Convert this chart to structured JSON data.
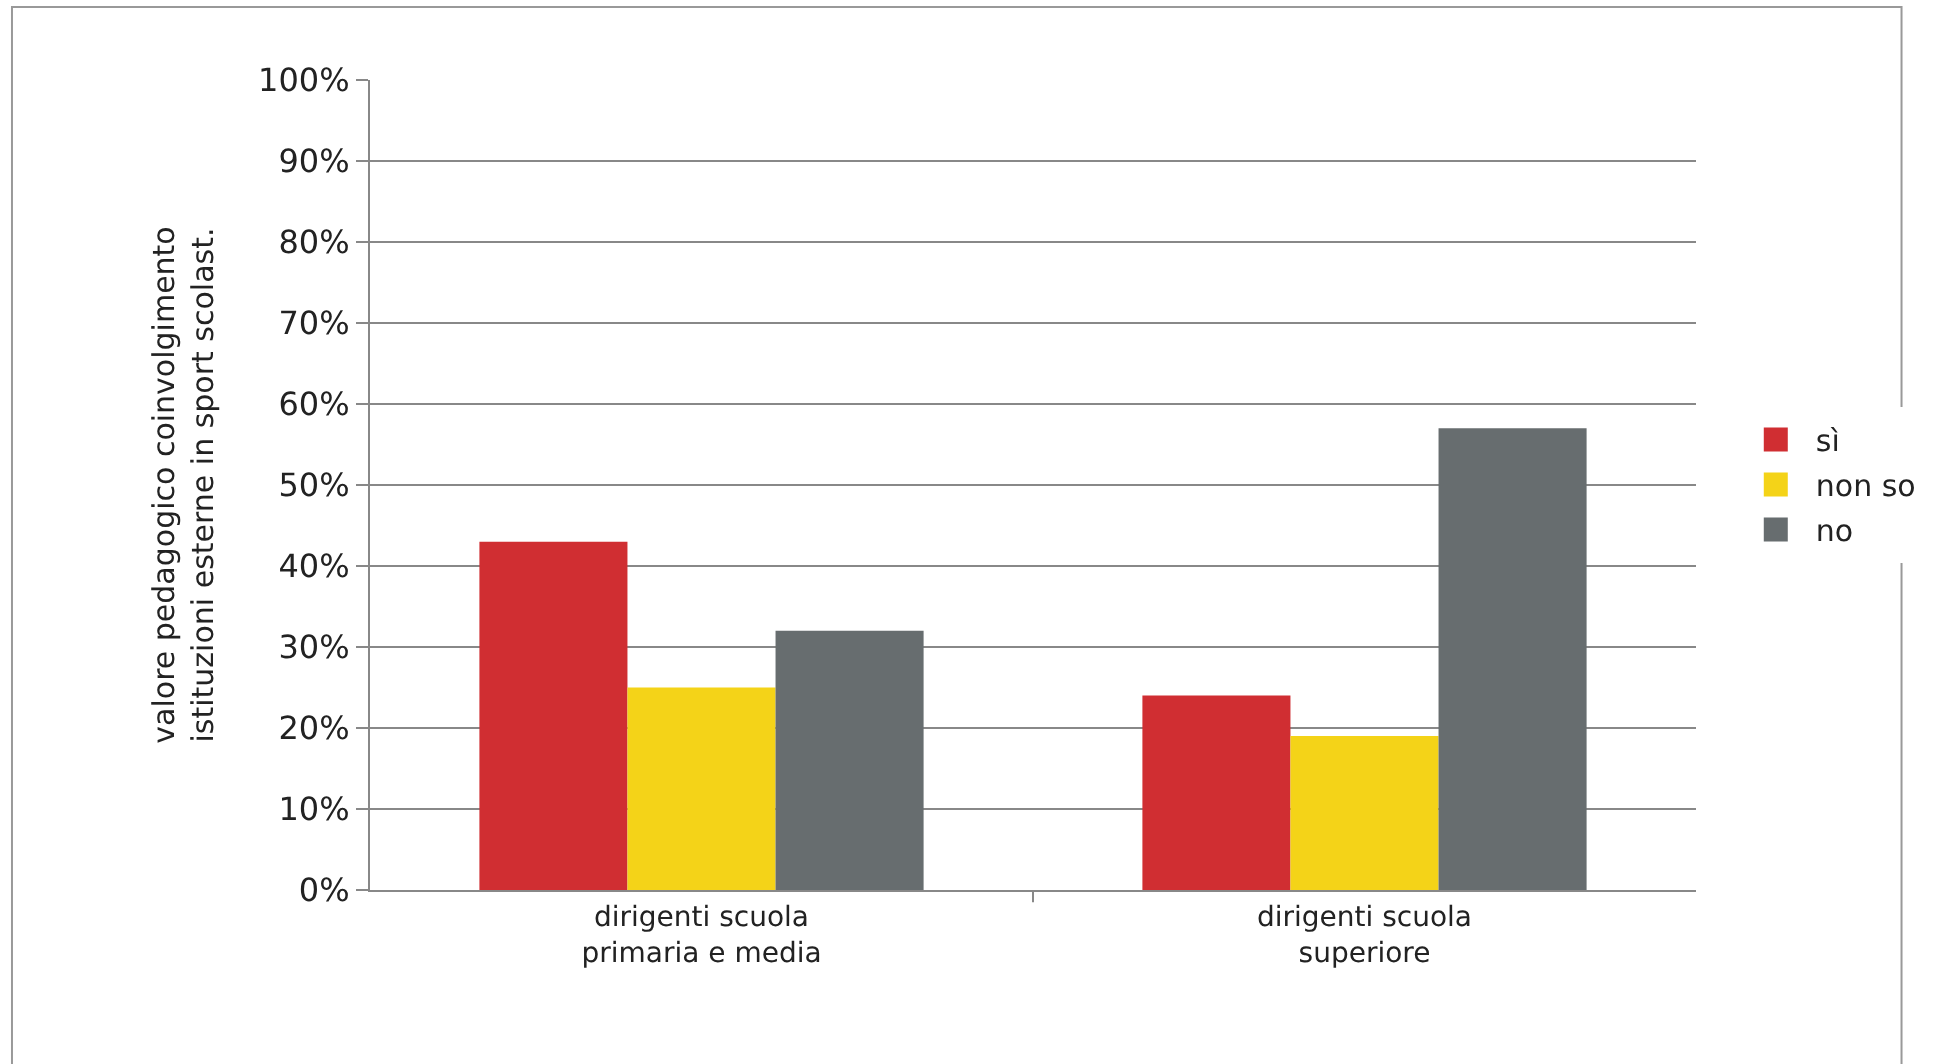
{
  "chart_data": {
    "type": "bar",
    "ylabel": "valore pedagogico coinvolgimento\nistituzioni esterne in sport scolast.",
    "categories": [
      "dirigenti scuola\nprimaria e media",
      "dirigenti scuola\nsuperiore"
    ],
    "series": [
      {
        "name": "sì",
        "color": "#d02e32",
        "values": [
          43,
          24
        ]
      },
      {
        "name": "non so",
        "color": "#f4d318",
        "values": [
          25,
          19
        ]
      },
      {
        "name": "no",
        "color": "#676d6f",
        "values": [
          32,
          57
        ]
      }
    ],
    "ylim": [
      0,
      100
    ],
    "yticks": [
      {
        "value": 0,
        "label": "0%"
      },
      {
        "value": 10,
        "label": "10%"
      },
      {
        "value": 20,
        "label": "20%"
      },
      {
        "value": 30,
        "label": "30%"
      },
      {
        "value": 40,
        "label": "40%"
      },
      {
        "value": 50,
        "label": "50%"
      },
      {
        "value": 60,
        "label": "60%"
      },
      {
        "value": 70,
        "label": "70%"
      },
      {
        "value": 80,
        "label": "80%"
      },
      {
        "value": 90,
        "label": "90%"
      },
      {
        "value": 100,
        "label": "100%"
      }
    ],
    "grid": "y",
    "legend": "right"
  }
}
